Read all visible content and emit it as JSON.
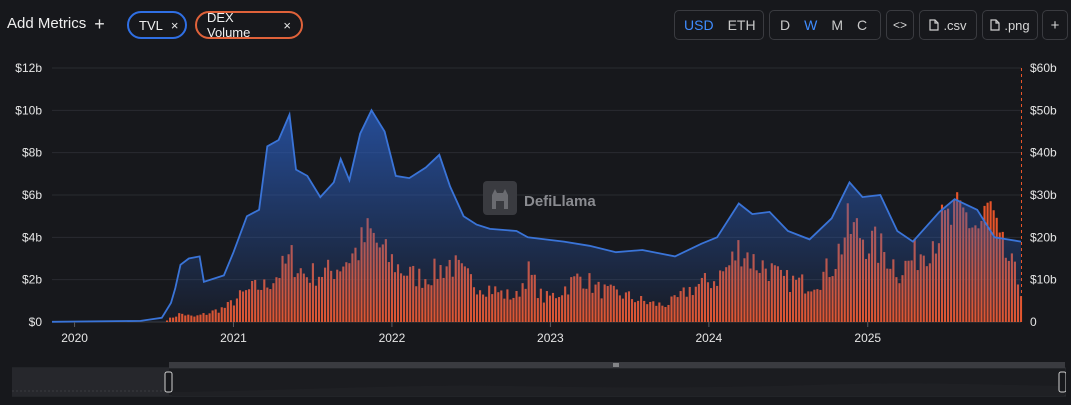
{
  "toolbar": {
    "add_metrics_label": "Add Metrics",
    "add_icon": "+",
    "chips": [
      {
        "label": "TVL",
        "color": "#2f6fe4"
      },
      {
        "label": "DEX Volume",
        "color": "#e0623a"
      }
    ],
    "close_icon": "×",
    "currency": {
      "options": [
        "USD",
        "ETH"
      ],
      "selected": "USD"
    },
    "period": {
      "options": [
        "D",
        "W",
        "M",
        "C"
      ],
      "selected": "W"
    },
    "embed_label": "<>",
    "csv_label": ".csv",
    "png_label": ".png",
    "extra_label": "+"
  },
  "watermark": "DefiLlama",
  "colors": {
    "tvl": "#3a74d8",
    "volume": "#e8552a",
    "grid": "#2a2b30",
    "text": "#e6e6e6"
  },
  "chart_data": {
    "type": "bar+area",
    "x_labels": [
      "2020",
      "2021",
      "2022",
      "2023",
      "2024",
      "2025"
    ],
    "x_range": [
      "2019-11-10",
      "2025-12-20"
    ],
    "left_axis": {
      "ticks": [
        "$0",
        "$2b",
        "$4b",
        "$6b",
        "$8b",
        "$10b",
        "$12b"
      ],
      "range": [
        0,
        12
      ]
    },
    "right_axis": {
      "ticks": [
        "0",
        "$10b",
        "$20b",
        "$30b",
        "$40b",
        "$50b",
        "$60b"
      ],
      "range": [
        0,
        60
      ]
    },
    "series": [
      {
        "name": "TVL",
        "axis": "left",
        "unit": "billion USD",
        "points": [
          [
            "2019-11-10",
            0.01
          ],
          [
            "2020-06-01",
            0.05
          ],
          [
            "2020-07-20",
            0.2
          ],
          [
            "2020-08-10",
            0.9
          ],
          [
            "2020-08-20",
            1.6
          ],
          [
            "2020-09-01",
            2.7
          ],
          [
            "2020-09-20",
            3.0
          ],
          [
            "2020-10-15",
            3.1
          ],
          [
            "2020-10-25",
            1.9
          ],
          [
            "2020-12-10",
            2.2
          ],
          [
            "2021-01-01",
            3.3
          ],
          [
            "2021-02-01",
            5.0
          ],
          [
            "2021-03-01",
            5.3
          ],
          [
            "2021-03-20",
            8.3
          ],
          [
            "2021-04-15",
            8.6
          ],
          [
            "2021-05-10",
            9.8
          ],
          [
            "2021-05-25",
            7.2
          ],
          [
            "2021-06-20",
            6.9
          ],
          [
            "2021-07-20",
            5.9
          ],
          [
            "2021-08-20",
            6.6
          ],
          [
            "2021-09-05",
            7.7
          ],
          [
            "2021-09-25",
            6.7
          ],
          [
            "2021-10-20",
            8.9
          ],
          [
            "2021-11-15",
            10.0
          ],
          [
            "2021-12-15",
            9.0
          ],
          [
            "2022-01-10",
            6.9
          ],
          [
            "2022-02-10",
            6.8
          ],
          [
            "2022-03-20",
            7.3
          ],
          [
            "2022-04-20",
            7.9
          ],
          [
            "2022-05-15",
            6.4
          ],
          [
            "2022-06-15",
            5.0
          ],
          [
            "2022-07-15",
            4.6
          ],
          [
            "2022-08-15",
            4.4
          ],
          [
            "2022-10-15",
            4.3
          ],
          [
            "2022-11-10",
            4.0
          ],
          [
            "2022-12-20",
            3.9
          ],
          [
            "2023-02-01",
            3.8
          ],
          [
            "2023-04-01",
            3.6
          ],
          [
            "2023-06-01",
            3.3
          ],
          [
            "2023-08-01",
            3.4
          ],
          [
            "2023-10-15",
            3.1
          ],
          [
            "2023-12-15",
            3.7
          ],
          [
            "2024-01-20",
            4.0
          ],
          [
            "2024-03-10",
            5.6
          ],
          [
            "2024-04-10",
            5.1
          ],
          [
            "2024-05-20",
            5.2
          ],
          [
            "2024-07-01",
            4.3
          ],
          [
            "2024-08-20",
            3.9
          ],
          [
            "2024-10-10",
            4.9
          ],
          [
            "2024-11-20",
            6.6
          ],
          [
            "2024-12-20",
            5.9
          ],
          [
            "2025-01-30",
            6.0
          ],
          [
            "2025-03-10",
            4.3
          ],
          [
            "2025-04-15",
            3.8
          ],
          [
            "2025-06-15",
            5.2
          ],
          [
            "2025-07-20",
            5.8
          ],
          [
            "2025-09-10",
            5.3
          ],
          [
            "2025-10-20",
            4.0
          ],
          [
            "2025-12-20",
            3.8
          ]
        ]
      },
      {
        "name": "DEX Volume",
        "axis": "right",
        "unit": "billion USD",
        "points": [
          [
            "2020-08-01",
            0.5
          ],
          [
            "2020-09-01",
            2.0
          ],
          [
            "2020-10-01",
            1.2
          ],
          [
            "2020-11-01",
            2.0
          ],
          [
            "2020-12-15",
            3.5
          ],
          [
            "2021-01-15",
            6.0
          ],
          [
            "2021-02-15",
            8.0
          ],
          [
            "2021-03-15",
            8.5
          ],
          [
            "2021-04-15",
            11.5
          ],
          [
            "2021-05-15",
            15.0
          ],
          [
            "2021-06-15",
            11.0
          ],
          [
            "2021-07-15",
            11.5
          ],
          [
            "2021-08-15",
            12.0
          ],
          [
            "2021-09-15",
            14.5
          ],
          [
            "2021-10-15",
            17.0
          ],
          [
            "2021-11-10",
            21.0
          ],
          [
            "2021-12-15",
            16.0
          ],
          [
            "2022-01-15",
            13.0
          ],
          [
            "2022-02-15",
            11.0
          ],
          [
            "2022-03-15",
            10.5
          ],
          [
            "2022-04-15",
            12.0
          ],
          [
            "2022-05-15",
            14.0
          ],
          [
            "2022-06-15",
            11.0
          ],
          [
            "2022-07-15",
            9.0
          ],
          [
            "2022-08-15",
            8.0
          ],
          [
            "2022-09-15",
            6.5
          ],
          [
            "2022-10-15",
            6.0
          ],
          [
            "2022-11-10",
            12.0
          ],
          [
            "2022-12-15",
            5.5
          ],
          [
            "2023-01-15",
            6.5
          ],
          [
            "2023-02-15",
            9.0
          ],
          [
            "2023-03-15",
            11.0
          ],
          [
            "2023-04-15",
            8.0
          ],
          [
            "2023-05-15",
            7.0
          ],
          [
            "2023-06-15",
            6.5
          ],
          [
            "2023-07-15",
            5.5
          ],
          [
            "2023-08-15",
            4.5
          ],
          [
            "2023-09-15",
            4.0
          ],
          [
            "2023-10-15",
            5.0
          ],
          [
            "2023-11-15",
            7.5
          ],
          [
            "2023-12-15",
            9.0
          ],
          [
            "2024-01-15",
            10.0
          ],
          [
            "2024-02-15",
            13.0
          ],
          [
            "2024-03-15",
            18.0
          ],
          [
            "2024-04-15",
            14.0
          ],
          [
            "2024-05-15",
            13.0
          ],
          [
            "2024-06-15",
            10.0
          ],
          [
            "2024-07-15",
            9.5
          ],
          [
            "2024-08-15",
            9.0
          ],
          [
            "2024-09-15",
            10.5
          ],
          [
            "2024-10-15",
            14.0
          ],
          [
            "2024-11-15",
            22.0
          ],
          [
            "2024-12-15",
            21.0
          ],
          [
            "2025-01-15",
            18.0
          ],
          [
            "2025-02-15",
            16.0
          ],
          [
            "2025-03-15",
            12.0
          ],
          [
            "2025-04-15",
            15.0
          ],
          [
            "2025-05-15",
            18.0
          ],
          [
            "2025-06-15",
            22.0
          ],
          [
            "2025-07-15",
            24.0
          ],
          [
            "2025-08-15",
            25.0
          ],
          [
            "2025-09-15",
            22.0
          ],
          [
            "2025-10-10",
            27.0
          ],
          [
            "2025-10-30",
            18.0
          ],
          [
            "2025-11-20",
            15.0
          ],
          [
            "2025-12-20",
            8.0
          ]
        ]
      }
    ],
    "grid": "horizontal",
    "legend": "top-left chips"
  }
}
